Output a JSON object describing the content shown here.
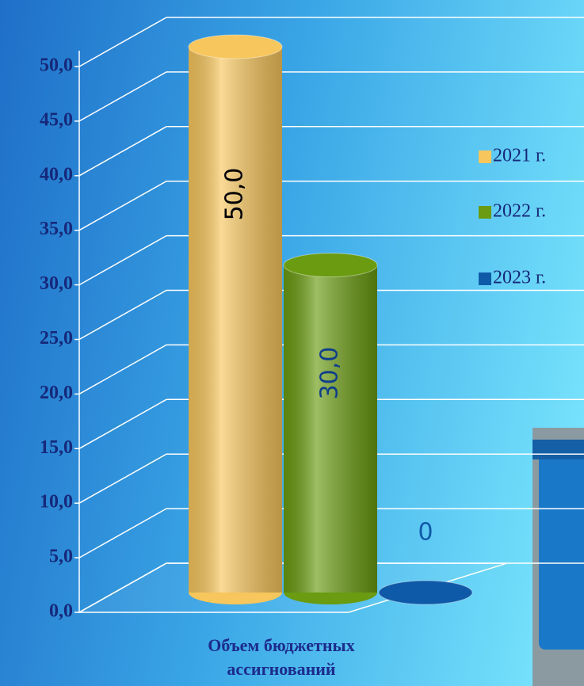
{
  "chart_data": {
    "type": "bar",
    "categories": [
      "Объем бюджетных ассигнований"
    ],
    "series": [
      {
        "name": "2021 г.",
        "color": "#f7c65c",
        "values": [
          50
        ],
        "value_labels": [
          "50,0"
        ]
      },
      {
        "name": "2022 г.",
        "color": "#6a9b10",
        "values": [
          30
        ],
        "value_labels": [
          "30,0"
        ]
      },
      {
        "name": "2023 г.",
        "color": "#0f5aa8",
        "values": [
          0
        ],
        "value_labels": [
          "0"
        ]
      }
    ],
    "ylim": [
      0,
      50
    ],
    "yticks": [
      {
        "value": 0,
        "label": "0,0"
      },
      {
        "value": 5,
        "label": "5,0"
      },
      {
        "value": 10,
        "label": "10,0"
      },
      {
        "value": 15,
        "label": "15,0"
      },
      {
        "value": 20,
        "label": "20,0"
      },
      {
        "value": 25,
        "label": "25,0"
      },
      {
        "value": 30,
        "label": "30,0"
      },
      {
        "value": 35,
        "label": "35,0"
      },
      {
        "value": 40,
        "label": "40,0"
      },
      {
        "value": 45,
        "label": "45,0"
      },
      {
        "value": 50,
        "label": "50,0"
      }
    ],
    "grid": true,
    "legend": "right"
  }
}
